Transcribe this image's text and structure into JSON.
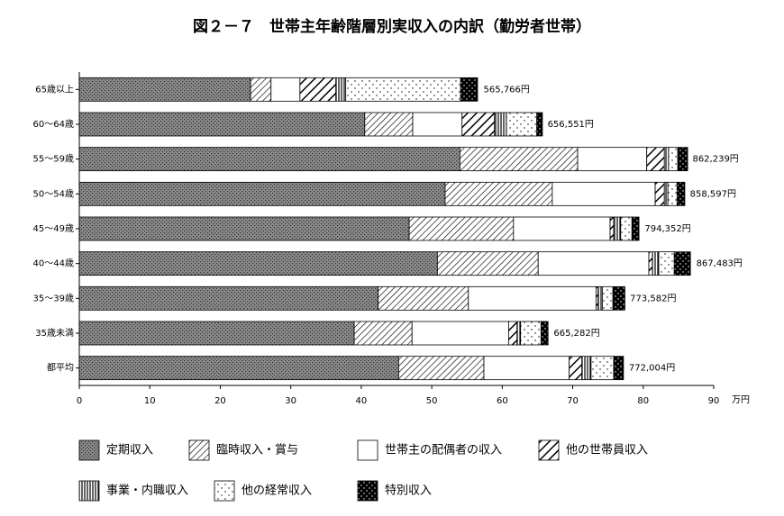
{
  "chart_data": {
    "type": "stacked-bar-horizontal",
    "title": "図２－７　世帯主年齢階層別実収入の内訳（勤労者世帯）",
    "x_unit": "万円",
    "categories": [
      "65歳以上",
      "60～64歳",
      "55～59歳",
      "50～54歳",
      "45～49歳",
      "40～44歳",
      "35～39歳",
      "35歳未満",
      "都平均"
    ],
    "series": [
      {
        "name": "定期収入",
        "pattern": "dots-dark",
        "values": [
          24.3,
          40.5,
          54.0,
          51.9,
          46.8,
          50.8,
          42.4,
          39.0,
          45.3
        ]
      },
      {
        "name": "臨時収入・賞与",
        "pattern": "hatch-thin",
        "values": [
          2.9,
          6.8,
          16.7,
          15.2,
          14.8,
          14.3,
          12.8,
          8.2,
          12.1
        ]
      },
      {
        "name": "世帯主の配偶者の収入",
        "pattern": "white",
        "values": [
          4.1,
          7.0,
          9.8,
          14.6,
          13.7,
          15.7,
          18.1,
          13.7,
          12.1
        ]
      },
      {
        "name": "他の世帯員収入",
        "pattern": "hatch-bold",
        "values": [
          5.1,
          4.6,
          2.5,
          1.3,
          0.5,
          0.5,
          0.3,
          1.2,
          1.8
        ]
      },
      {
        "name": "事業・内職収入",
        "pattern": "vlines",
        "values": [
          1.4,
          1.7,
          0.6,
          0.5,
          1.0,
          0.9,
          0.6,
          0.5,
          1.3
        ]
      },
      {
        "name": "他の経常収入",
        "pattern": "dots-light",
        "values": [
          16.3,
          4.3,
          1.3,
          1.3,
          1.6,
          2.2,
          1.5,
          2.9,
          3.2
        ]
      },
      {
        "name": "特別収入",
        "pattern": "black-dots",
        "values": [
          2.4,
          0.8,
          1.4,
          1.1,
          1.0,
          2.3,
          1.7,
          1.0,
          1.4
        ]
      }
    ],
    "totals": [
      56.5766,
      65.6551,
      86.2239,
      85.8597,
      79.4352,
      86.7483,
      77.3582,
      66.5282,
      77.2004
    ],
    "total_labels": [
      "565,766円",
      "656,551円",
      "862,239円",
      "858,597円",
      "794,352円",
      "867,483円",
      "773,582円",
      "665,282円",
      "772,004円"
    ],
    "xlim": [
      0,
      90
    ],
    "xticks": [
      0,
      10,
      20,
      30,
      40,
      50,
      60,
      70,
      80,
      90
    ]
  }
}
